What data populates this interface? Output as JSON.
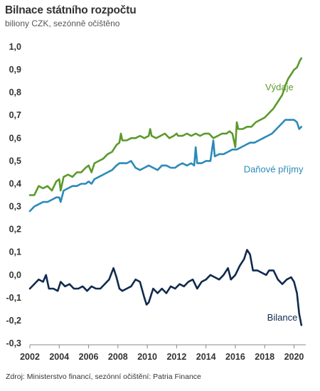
{
  "header": {
    "title": "Bilnace státního rozpočtu",
    "subtitle": "biliony CZK, sezónně očištěno"
  },
  "footer": {
    "source": "Zdroj: Ministerstvo financí, sezónní očištění: Patria Finance"
  },
  "chart_data": {
    "type": "line",
    "xlim": [
      2002,
      2020.8
    ],
    "ylim": [
      -0.3,
      1.0
    ],
    "x_ticks": [
      2002,
      2004,
      2006,
      2008,
      2010,
      2012,
      2014,
      2016,
      2018,
      2020
    ],
    "y_ticks": [
      1.0,
      0.9,
      0.8,
      0.7,
      0.6,
      0.5,
      0.4,
      0.3,
      0.2,
      0.1,
      0.0,
      -0.1,
      -0.2,
      -0.3
    ],
    "y_tick_labels": [
      "1,0",
      "0,9",
      "0,8",
      "0,7",
      "0,6",
      "0,5",
      "0,4",
      "0,3",
      "0,2",
      "0,1",
      "0,0",
      "-0,1",
      "-0,2",
      "-0,3"
    ],
    "grid": false,
    "series": [
      {
        "name": "Výdaje",
        "color": "#5b9a2a",
        "points": [
          [
            2002.0,
            0.35
          ],
          [
            2002.3,
            0.35
          ],
          [
            2002.6,
            0.39
          ],
          [
            2002.9,
            0.38
          ],
          [
            2003.2,
            0.39
          ],
          [
            2003.5,
            0.37
          ],
          [
            2003.8,
            0.41
          ],
          [
            2004.0,
            0.42
          ],
          [
            2004.1,
            0.37
          ],
          [
            2004.3,
            0.43
          ],
          [
            2004.6,
            0.44
          ],
          [
            2004.9,
            0.43
          ],
          [
            2005.2,
            0.45
          ],
          [
            2005.5,
            0.45
          ],
          [
            2005.8,
            0.47
          ],
          [
            2006.0,
            0.48
          ],
          [
            2006.2,
            0.45
          ],
          [
            2006.4,
            0.49
          ],
          [
            2006.7,
            0.5
          ],
          [
            2007.0,
            0.51
          ],
          [
            2007.3,
            0.53
          ],
          [
            2007.6,
            0.54
          ],
          [
            2007.9,
            0.57
          ],
          [
            2008.1,
            0.58
          ],
          [
            2008.2,
            0.62
          ],
          [
            2008.3,
            0.59
          ],
          [
            2008.6,
            0.59
          ],
          [
            2008.9,
            0.6
          ],
          [
            2009.2,
            0.6
          ],
          [
            2009.5,
            0.61
          ],
          [
            2009.8,
            0.6
          ],
          [
            2010.1,
            0.61
          ],
          [
            2010.2,
            0.64
          ],
          [
            2010.3,
            0.61
          ],
          [
            2010.6,
            0.6
          ],
          [
            2010.9,
            0.61
          ],
          [
            2011.2,
            0.62
          ],
          [
            2011.5,
            0.6
          ],
          [
            2011.8,
            0.61
          ],
          [
            2012.0,
            0.62
          ],
          [
            2012.1,
            0.61
          ],
          [
            2012.4,
            0.61
          ],
          [
            2012.7,
            0.62
          ],
          [
            2013.0,
            0.61
          ],
          [
            2013.3,
            0.62
          ],
          [
            2013.6,
            0.61
          ],
          [
            2013.9,
            0.62
          ],
          [
            2014.2,
            0.62
          ],
          [
            2014.5,
            0.6
          ],
          [
            2014.8,
            0.61
          ],
          [
            2015.1,
            0.62
          ],
          [
            2015.4,
            0.62
          ],
          [
            2015.6,
            0.63
          ],
          [
            2015.8,
            0.62
          ],
          [
            2016.0,
            0.56
          ],
          [
            2016.1,
            0.67
          ],
          [
            2016.2,
            0.64
          ],
          [
            2016.5,
            0.64
          ],
          [
            2016.8,
            0.65
          ],
          [
            2017.1,
            0.65
          ],
          [
            2017.4,
            0.67
          ],
          [
            2017.7,
            0.68
          ],
          [
            2018.0,
            0.69
          ],
          [
            2018.3,
            0.71
          ],
          [
            2018.6,
            0.73
          ],
          [
            2018.9,
            0.76
          ],
          [
            2019.2,
            0.79
          ],
          [
            2019.4,
            0.83
          ],
          [
            2019.6,
            0.86
          ],
          [
            2019.8,
            0.88
          ],
          [
            2020.0,
            0.9
          ],
          [
            2020.2,
            0.91
          ],
          [
            2020.4,
            0.94
          ],
          [
            2020.5,
            0.95
          ]
        ]
      },
      {
        "name": "Daňové příjmy",
        "color": "#2b8ab8",
        "points": [
          [
            2002.0,
            0.28
          ],
          [
            2002.3,
            0.3
          ],
          [
            2002.6,
            0.31
          ],
          [
            2002.9,
            0.32
          ],
          [
            2003.2,
            0.32
          ],
          [
            2003.5,
            0.33
          ],
          [
            2003.8,
            0.34
          ],
          [
            2004.0,
            0.34
          ],
          [
            2004.1,
            0.32
          ],
          [
            2004.3,
            0.37
          ],
          [
            2004.6,
            0.38
          ],
          [
            2004.9,
            0.39
          ],
          [
            2005.2,
            0.39
          ],
          [
            2005.5,
            0.4
          ],
          [
            2005.8,
            0.4
          ],
          [
            2006.0,
            0.41
          ],
          [
            2006.2,
            0.4
          ],
          [
            2006.4,
            0.42
          ],
          [
            2006.7,
            0.43
          ],
          [
            2007.0,
            0.44
          ],
          [
            2007.3,
            0.45
          ],
          [
            2007.6,
            0.46
          ],
          [
            2007.9,
            0.48
          ],
          [
            2008.1,
            0.49
          ],
          [
            2008.3,
            0.49
          ],
          [
            2008.6,
            0.49
          ],
          [
            2008.9,
            0.5
          ],
          [
            2009.2,
            0.47
          ],
          [
            2009.5,
            0.46
          ],
          [
            2009.8,
            0.47
          ],
          [
            2010.1,
            0.48
          ],
          [
            2010.4,
            0.47
          ],
          [
            2010.7,
            0.46
          ],
          [
            2011.0,
            0.48
          ],
          [
            2011.3,
            0.48
          ],
          [
            2011.6,
            0.47
          ],
          [
            2011.9,
            0.47
          ],
          [
            2012.1,
            0.48
          ],
          [
            2012.4,
            0.49
          ],
          [
            2012.7,
            0.48
          ],
          [
            2013.0,
            0.49
          ],
          [
            2013.2,
            0.48
          ],
          [
            2013.3,
            0.56
          ],
          [
            2013.4,
            0.49
          ],
          [
            2013.7,
            0.49
          ],
          [
            2014.0,
            0.5
          ],
          [
            2014.3,
            0.5
          ],
          [
            2014.5,
            0.59
          ],
          [
            2014.6,
            0.52
          ],
          [
            2014.9,
            0.53
          ],
          [
            2015.2,
            0.53
          ],
          [
            2015.5,
            0.54
          ],
          [
            2015.8,
            0.55
          ],
          [
            2016.1,
            0.55
          ],
          [
            2016.4,
            0.56
          ],
          [
            2016.7,
            0.57
          ],
          [
            2017.0,
            0.58
          ],
          [
            2017.3,
            0.58
          ],
          [
            2017.6,
            0.59
          ],
          [
            2017.9,
            0.6
          ],
          [
            2018.2,
            0.61
          ],
          [
            2018.5,
            0.62
          ],
          [
            2018.8,
            0.64
          ],
          [
            2019.1,
            0.66
          ],
          [
            2019.4,
            0.68
          ],
          [
            2019.7,
            0.68
          ],
          [
            2020.0,
            0.68
          ],
          [
            2020.2,
            0.67
          ],
          [
            2020.35,
            0.64
          ],
          [
            2020.5,
            0.65
          ]
        ]
      },
      {
        "name": "Bilance",
        "color": "#0f2a4e",
        "points": [
          [
            2002.0,
            -0.06
          ],
          [
            2002.3,
            -0.04
          ],
          [
            2002.6,
            -0.02
          ],
          [
            2002.9,
            -0.03
          ],
          [
            2003.1,
            0.0
          ],
          [
            2003.3,
            -0.06
          ],
          [
            2003.6,
            -0.06
          ],
          [
            2003.9,
            -0.07
          ],
          [
            2004.1,
            -0.03
          ],
          [
            2004.4,
            -0.05
          ],
          [
            2004.7,
            -0.04
          ],
          [
            2005.0,
            -0.06
          ],
          [
            2005.3,
            -0.06
          ],
          [
            2005.6,
            -0.05
          ],
          [
            2005.9,
            -0.07
          ],
          [
            2006.2,
            -0.05
          ],
          [
            2006.5,
            -0.06
          ],
          [
            2006.8,
            -0.06
          ],
          [
            2007.1,
            -0.04
          ],
          [
            2007.4,
            -0.02
          ],
          [
            2007.7,
            0.03
          ],
          [
            2007.9,
            -0.01
          ],
          [
            2008.1,
            -0.06
          ],
          [
            2008.3,
            -0.07
          ],
          [
            2008.6,
            -0.06
          ],
          [
            2008.9,
            -0.05
          ],
          [
            2009.2,
            -0.02
          ],
          [
            2009.5,
            -0.03
          ],
          [
            2009.8,
            -0.1
          ],
          [
            2009.95,
            -0.13
          ],
          [
            2010.1,
            -0.12
          ],
          [
            2010.4,
            -0.06
          ],
          [
            2010.7,
            -0.08
          ],
          [
            2011.0,
            -0.06
          ],
          [
            2011.3,
            -0.08
          ],
          [
            2011.6,
            -0.05
          ],
          [
            2011.9,
            -0.06
          ],
          [
            2012.2,
            -0.04
          ],
          [
            2012.5,
            -0.05
          ],
          [
            2012.8,
            -0.03
          ],
          [
            2013.1,
            -0.02
          ],
          [
            2013.4,
            -0.06
          ],
          [
            2013.7,
            -0.03
          ],
          [
            2014.0,
            -0.02
          ],
          [
            2014.3,
            0.0
          ],
          [
            2014.6,
            -0.01
          ],
          [
            2014.9,
            -0.02
          ],
          [
            2015.2,
            0.0
          ],
          [
            2015.5,
            0.03
          ],
          [
            2015.7,
            -0.02
          ],
          [
            2016.0,
            0.0
          ],
          [
            2016.3,
            0.04
          ],
          [
            2016.6,
            0.07
          ],
          [
            2016.8,
            0.11
          ],
          [
            2017.0,
            0.09
          ],
          [
            2017.2,
            0.02
          ],
          [
            2017.5,
            0.02
          ],
          [
            2017.8,
            0.01
          ],
          [
            2018.1,
            0.0
          ],
          [
            2018.3,
            0.02
          ],
          [
            2018.6,
            0.02
          ],
          [
            2018.9,
            -0.02
          ],
          [
            2019.2,
            -0.04
          ],
          [
            2019.5,
            -0.02
          ],
          [
            2019.8,
            -0.01
          ],
          [
            2020.0,
            -0.03
          ],
          [
            2020.2,
            -0.08
          ],
          [
            2020.35,
            -0.17
          ],
          [
            2020.5,
            -0.22
          ]
        ]
      }
    ],
    "annotations": [
      {
        "series": "Výdaje",
        "text": "Výdaje",
        "at": [
          2019.0,
          0.81
        ]
      },
      {
        "series": "Daňové příjmy",
        "text": "Daňové příjmy",
        "at": [
          2018.6,
          0.45
        ]
      },
      {
        "series": "Bilance",
        "text": "Bilance",
        "at": [
          2019.2,
          -0.2
        ]
      }
    ]
  }
}
